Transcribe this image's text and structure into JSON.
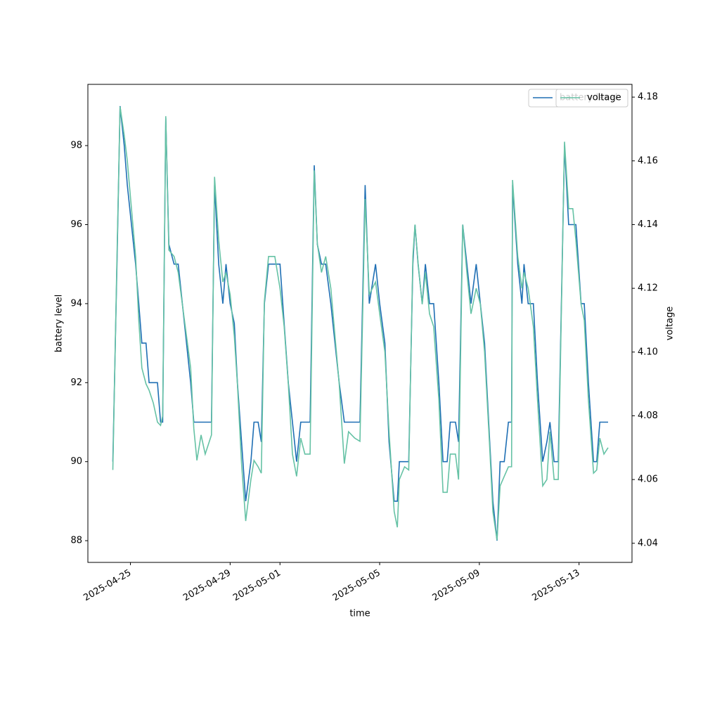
{
  "chart_data": {
    "type": "line",
    "xlabel": "time",
    "ylabel": "battery level",
    "y2label": "voltage",
    "x": [
      "2025-04-24T07:00",
      "2025-04-24T11:00",
      "2025-04-24T14:00",
      "2025-04-24T18:00",
      "2025-04-24T21:00",
      "2025-04-25T01:00",
      "2025-04-25T05:00",
      "2025-04-25T08:00",
      "2025-04-25T11:00",
      "2025-04-25T15:00",
      "2025-04-25T18:00",
      "2025-04-25T22:00",
      "2025-04-26T02:00",
      "2025-04-26T05:00",
      "2025-04-26T07:00",
      "2025-04-26T10:00",
      "2025-04-26T13:00",
      "2025-04-26T18:00",
      "2025-04-26T22:00",
      "2025-04-27T02:00",
      "2025-04-27T06:00",
      "2025-04-27T10:00",
      "2025-04-27T13:00",
      "2025-04-27T16:00",
      "2025-04-27T20:00",
      "2025-04-28T00:00",
      "2025-04-28T06:00",
      "2025-04-28T09:00",
      "2025-04-28T13:00",
      "2025-04-28T17:00",
      "2025-04-28T20:00",
      "2025-04-29T00:00",
      "2025-04-29T04:00",
      "2025-04-29T07:00",
      "2025-04-29T11:00",
      "2025-04-29T15:00",
      "2025-04-29T20:00",
      "2025-04-29T23:00",
      "2025-04-30T03:00",
      "2025-04-30T06:00",
      "2025-04-30T09:00",
      "2025-04-30T13:00",
      "2025-04-30T19:00",
      "2025-05-01T00:00",
      "2025-05-01T04:00",
      "2025-05-01T08:00",
      "2025-05-01T12:00",
      "2025-05-01T16:00",
      "2025-05-01T20:00",
      "2025-05-02T00:00",
      "2025-05-02T05:00",
      "2025-05-02T09:00",
      "2025-05-02T12:00",
      "2025-05-02T16:00",
      "2025-05-02T20:00",
      "2025-05-03T01:00",
      "2025-05-03T05:00",
      "2025-05-03T09:00",
      "2025-05-03T14:00",
      "2025-05-03T18:00",
      "2025-05-04T00:00",
      "2025-05-04T05:00",
      "2025-05-04T10:00",
      "2025-05-04T14:00",
      "2025-05-04T20:00",
      "2025-05-05T00:00",
      "2025-05-05T05:00",
      "2025-05-05T09:00",
      "2025-05-05T14:00",
      "2025-05-05T17:00",
      "2025-05-05T19:00",
      "2025-05-06T00:00",
      "2025-05-06T04:00",
      "2025-05-06T08:00",
      "2025-05-06T10:00",
      "2025-05-06T13:00",
      "2025-05-06T17:00",
      "2025-05-06T20:00",
      "2025-05-07T00:00",
      "2025-05-07T04:00",
      "2025-05-07T09:00",
      "2025-05-07T13:00",
      "2025-05-07T17:00",
      "2025-05-07T20:00",
      "2025-05-08T01:00",
      "2025-05-08T04:00",
      "2025-05-08T08:00",
      "2025-05-08T12:00",
      "2025-05-08T16:00",
      "2025-05-08T21:00",
      "2025-05-09T01:00",
      "2025-05-09T05:00",
      "2025-05-09T10:00",
      "2025-05-09T13:00",
      "2025-05-09T17:00",
      "2025-05-09T20:00",
      "2025-05-10T00:00",
      "2025-05-10T04:00",
      "2025-05-10T07:00",
      "2025-05-10T08:00",
      "2025-05-10T13:00",
      "2025-05-10T17:00",
      "2025-05-10T19:00",
      "2025-05-10T23:00",
      "2025-05-11T04:00",
      "2025-05-11T08:00",
      "2025-05-11T13:00",
      "2025-05-11T17:00",
      "2025-05-11T20:00",
      "2025-05-12T00:00",
      "2025-05-12T04:00",
      "2025-05-12T10:00",
      "2025-05-12T14:00",
      "2025-05-12T18:00",
      "2025-05-12T21:00",
      "2025-05-13T02:00",
      "2025-05-13T05:00",
      "2025-05-13T09:00",
      "2025-05-13T14:00",
      "2025-05-13T17:00",
      "2025-05-13T20:00",
      "2025-05-14T00:00",
      "2025-05-14T04:00"
    ],
    "series": [
      {
        "name": "battery level",
        "color": "#1f6fb4",
        "values": [
          90,
          95,
          99,
          98,
          97,
          96,
          95,
          94,
          93,
          93,
          92,
          92,
          92,
          91,
          91,
          98.7,
          95.5,
          95,
          95,
          94,
          93,
          92,
          91,
          91,
          91,
          91,
          91,
          97,
          95,
          94,
          95,
          94,
          93.5,
          92,
          90.5,
          89,
          90,
          91,
          91,
          90.5,
          94,
          95,
          95,
          95,
          93.5,
          92,
          91,
          90,
          91,
          91,
          91,
          97.5,
          95.5,
          95,
          95,
          94,
          93,
          92,
          91,
          91,
          91,
          91,
          97,
          94,
          95,
          94,
          93,
          90.5,
          89,
          89,
          90,
          90,
          90,
          95,
          96,
          95,
          94,
          95,
          94,
          94,
          92,
          90,
          90,
          91,
          91,
          90.5,
          96,
          95,
          94,
          95,
          94,
          93,
          90.5,
          89,
          88,
          90,
          90,
          91,
          91,
          97,
          95,
          94,
          95,
          94,
          94,
          92,
          90,
          90.5,
          91,
          90,
          90,
          98,
          96,
          96,
          96,
          94,
          94,
          92,
          90,
          90,
          91,
          91,
          91
        ]
      },
      {
        "name": "voltage",
        "color": "#66c2a5",
        "axis": "y2",
        "values": [
          4.063,
          4.13,
          4.177,
          4.168,
          4.16,
          4.145,
          4.13,
          4.11,
          4.095,
          4.09,
          4.088,
          4.084,
          4.078,
          4.077,
          4.08,
          4.174,
          4.132,
          4.13,
          4.125,
          4.115,
          4.105,
          4.095,
          4.076,
          4.066,
          4.074,
          4.068,
          4.074,
          4.155,
          4.135,
          4.122,
          4.125,
          4.118,
          4.105,
          4.09,
          4.065,
          4.047,
          4.06,
          4.066,
          4.064,
          4.062,
          4.116,
          4.13,
          4.13,
          4.12,
          4.108,
          4.09,
          4.068,
          4.061,
          4.073,
          4.068,
          4.068,
          4.157,
          4.134,
          4.125,
          4.13,
          4.12,
          4.105,
          4.09,
          4.065,
          4.075,
          4.073,
          4.072,
          4.148,
          4.118,
          4.122,
          4.112,
          4.1,
          4.075,
          4.05,
          4.045,
          4.06,
          4.064,
          4.063,
          4.13,
          4.14,
          4.128,
          4.115,
          4.125,
          4.112,
          4.108,
          4.085,
          4.056,
          4.056,
          4.068,
          4.068,
          4.06,
          4.14,
          4.125,
          4.112,
          4.12,
          4.115,
          4.1,
          4.07,
          4.05,
          4.041,
          4.058,
          4.061,
          4.064,
          4.064,
          4.154,
          4.13,
          4.12,
          4.125,
          4.12,
          4.108,
          4.085,
          4.058,
          4.06,
          4.075,
          4.06,
          4.06,
          4.166,
          4.145,
          4.145,
          4.135,
          4.115,
          4.11,
          4.085,
          4.062,
          4.063,
          4.073,
          4.068,
          4.07
        ]
      }
    ],
    "xlim": [
      "2025-04-23T07:00",
      "2025-05-15T03:00"
    ],
    "xticks": [
      "2025-04-25",
      "2025-04-29",
      "2025-05-01",
      "2025-05-05",
      "2025-05-09",
      "2025-05-13"
    ],
    "ylim": [
      87.45,
      99.55
    ],
    "yticks": [
      88,
      90,
      92,
      94,
      96,
      98
    ],
    "y2lim": [
      4.034,
      4.184
    ],
    "y2ticks": [
      4.04,
      4.06,
      4.08,
      {
        "value": 4.1,
        "label": "4.10"
      },
      4.12,
      4.14,
      4.16,
      4.18
    ],
    "legend": "upper right"
  }
}
